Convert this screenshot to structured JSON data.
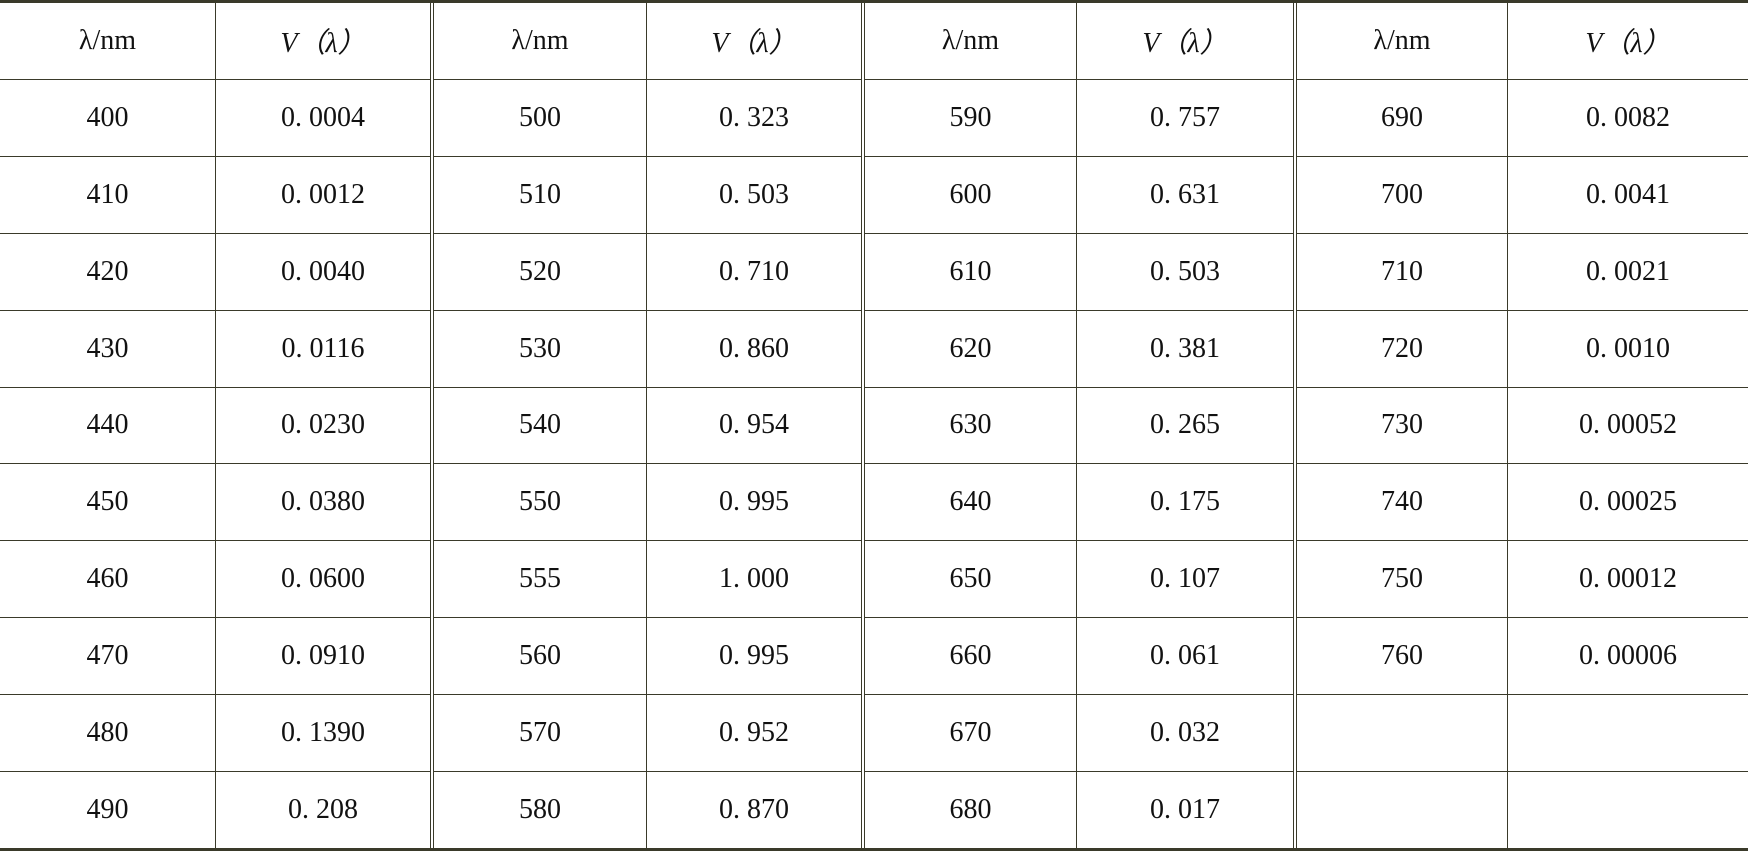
{
  "header": {
    "wavelength": "λ/nm",
    "efficiency": "V（λ）"
  },
  "groups": [
    {
      "rows": [
        [
          "400",
          "0. 0004"
        ],
        [
          "410",
          "0. 0012"
        ],
        [
          "420",
          "0. 0040"
        ],
        [
          "430",
          "0. 0116"
        ],
        [
          "440",
          "0. 0230"
        ],
        [
          "450",
          "0. 0380"
        ],
        [
          "460",
          "0. 0600"
        ],
        [
          "470",
          "0. 0910"
        ],
        [
          "480",
          "0. 1390"
        ],
        [
          "490",
          "0. 208"
        ]
      ]
    },
    {
      "rows": [
        [
          "500",
          "0. 323"
        ],
        [
          "510",
          "0. 503"
        ],
        [
          "520",
          "0. 710"
        ],
        [
          "530",
          "0. 860"
        ],
        [
          "540",
          "0. 954"
        ],
        [
          "550",
          "0. 995"
        ],
        [
          "555",
          "1. 000"
        ],
        [
          "560",
          "0. 995"
        ],
        [
          "570",
          "0. 952"
        ],
        [
          "580",
          "0. 870"
        ]
      ]
    },
    {
      "rows": [
        [
          "590",
          "0. 757"
        ],
        [
          "600",
          "0. 631"
        ],
        [
          "610",
          "0. 503"
        ],
        [
          "620",
          "0. 381"
        ],
        [
          "630",
          "0. 265"
        ],
        [
          "640",
          "0. 175"
        ],
        [
          "650",
          "0. 107"
        ],
        [
          "660",
          "0. 061"
        ],
        [
          "670",
          "0. 032"
        ],
        [
          "680",
          "0. 017"
        ]
      ]
    },
    {
      "rows": [
        [
          "690",
          "0. 0082"
        ],
        [
          "700",
          "0. 0041"
        ],
        [
          "710",
          "0. 0021"
        ],
        [
          "720",
          "0. 0010"
        ],
        [
          "730",
          "0. 00052"
        ],
        [
          "740",
          "0. 00025"
        ],
        [
          "750",
          "0. 00012"
        ],
        [
          "760",
          "0. 00006"
        ],
        [
          "",
          ""
        ],
        [
          "",
          ""
        ]
      ]
    }
  ]
}
